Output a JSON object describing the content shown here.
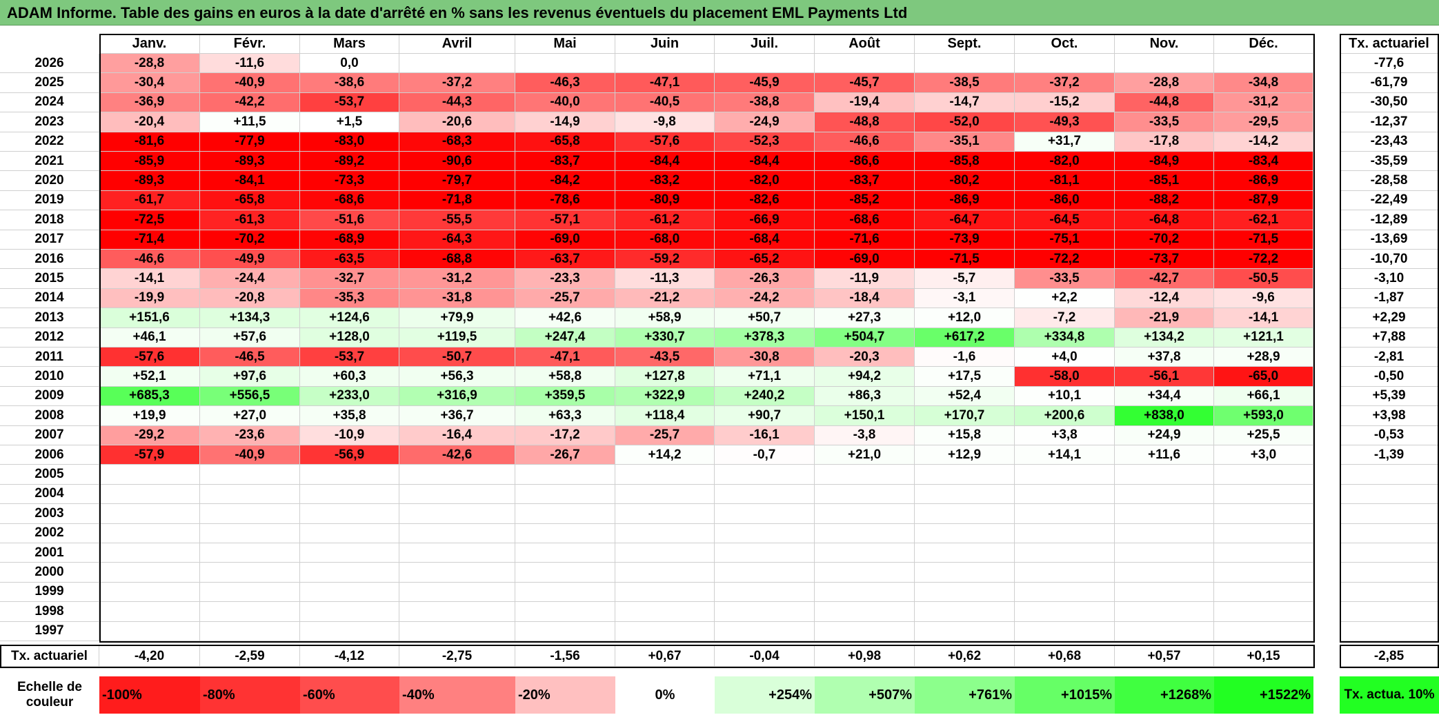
{
  "title": "ADAM Informe. Table des gains en euros à la date d'arrêté en % sans les revenus éventuels du placement EML Payments Ltd",
  "months": [
    "Janv.",
    "Févr.",
    "Mars",
    "Avril",
    "Mai",
    "Juin",
    "Juil.",
    "Août",
    "Sept.",
    "Oct.",
    "Nov.",
    "Déc."
  ],
  "actuarial_header": "Tx. actuariel",
  "rows": [
    {
      "year": "2026",
      "values": [
        "-28,8",
        "-11,6",
        "0,0",
        "",
        "",
        "",
        "",
        "",
        "",
        "",
        "",
        ""
      ],
      "actuarial": "-77,6"
    },
    {
      "year": "2025",
      "values": [
        "-30,4",
        "-40,9",
        "-38,6",
        "-37,2",
        "-46,3",
        "-47,1",
        "-45,9",
        "-45,7",
        "-38,5",
        "-37,2",
        "-28,8",
        "-34,8"
      ],
      "actuarial": "-61,79"
    },
    {
      "year": "2024",
      "values": [
        "-36,9",
        "-42,2",
        "-53,7",
        "-44,3",
        "-40,0",
        "-40,5",
        "-38,8",
        "-19,4",
        "-14,7",
        "-15,2",
        "-44,8",
        "-31,2"
      ],
      "actuarial": "-30,50"
    },
    {
      "year": "2023",
      "values": [
        "-20,4",
        "+11,5",
        "+1,5",
        "-20,6",
        "-14,9",
        "-9,8",
        "-24,9",
        "-48,8",
        "-52,0",
        "-49,3",
        "-33,5",
        "-29,5"
      ],
      "actuarial": "-12,37"
    },
    {
      "year": "2022",
      "values": [
        "-81,6",
        "-77,9",
        "-83,0",
        "-68,3",
        "-65,8",
        "-57,6",
        "-52,3",
        "-46,6",
        "-35,1",
        "+31,7",
        "-17,8",
        "-14,2"
      ],
      "actuarial": "-23,43"
    },
    {
      "year": "2021",
      "values": [
        "-85,9",
        "-89,3",
        "-89,2",
        "-90,6",
        "-83,7",
        "-84,4",
        "-84,4",
        "-86,6",
        "-85,8",
        "-82,0",
        "-84,9",
        "-83,4"
      ],
      "actuarial": "-35,59"
    },
    {
      "year": "2020",
      "values": [
        "-89,3",
        "-84,1",
        "-73,3",
        "-79,7",
        "-84,2",
        "-83,2",
        "-82,0",
        "-83,7",
        "-80,2",
        "-81,1",
        "-85,1",
        "-86,9"
      ],
      "actuarial": "-28,58"
    },
    {
      "year": "2019",
      "values": [
        "-61,7",
        "-65,8",
        "-68,6",
        "-71,8",
        "-78,6",
        "-80,9",
        "-82,6",
        "-85,2",
        "-86,9",
        "-86,0",
        "-88,2",
        "-87,9"
      ],
      "actuarial": "-22,49"
    },
    {
      "year": "2018",
      "values": [
        "-72,5",
        "-61,3",
        "-51,6",
        "-55,5",
        "-57,1",
        "-61,2",
        "-66,9",
        "-68,6",
        "-64,7",
        "-64,5",
        "-64,8",
        "-62,1"
      ],
      "actuarial": "-12,89"
    },
    {
      "year": "2017",
      "values": [
        "-71,4",
        "-70,2",
        "-68,9",
        "-64,3",
        "-69,0",
        "-68,0",
        "-68,4",
        "-71,6",
        "-73,9",
        "-75,1",
        "-70,2",
        "-71,5"
      ],
      "actuarial": "-13,69"
    },
    {
      "year": "2016",
      "values": [
        "-46,6",
        "-49,9",
        "-63,5",
        "-68,8",
        "-63,7",
        "-59,2",
        "-65,2",
        "-69,0",
        "-71,5",
        "-72,2",
        "-73,7",
        "-72,2"
      ],
      "actuarial": "-10,70"
    },
    {
      "year": "2015",
      "values": [
        "-14,1",
        "-24,4",
        "-32,7",
        "-31,2",
        "-23,3",
        "-11,3",
        "-26,3",
        "-11,9",
        "-5,7",
        "-33,5",
        "-42,7",
        "-50,5"
      ],
      "actuarial": "-3,10"
    },
    {
      "year": "2014",
      "values": [
        "-19,9",
        "-20,8",
        "-35,3",
        "-31,8",
        "-25,7",
        "-21,2",
        "-24,2",
        "-18,4",
        "-3,1",
        "+2,2",
        "-12,4",
        "-9,6"
      ],
      "actuarial": "-1,87"
    },
    {
      "year": "2013",
      "values": [
        "+151,6",
        "+134,3",
        "+124,6",
        "+79,9",
        "+42,6",
        "+58,9",
        "+50,7",
        "+27,3",
        "+12,0",
        "-7,2",
        "-21,9",
        "-14,1"
      ],
      "actuarial": "+2,29"
    },
    {
      "year": "2012",
      "values": [
        "+46,1",
        "+57,6",
        "+128,0",
        "+119,5",
        "+247,4",
        "+330,7",
        "+378,3",
        "+504,7",
        "+617,2",
        "+334,8",
        "+134,2",
        "+121,1"
      ],
      "actuarial": "+7,88"
    },
    {
      "year": "2011",
      "values": [
        "-57,6",
        "-46,5",
        "-53,7",
        "-50,7",
        "-47,1",
        "-43,5",
        "-30,8",
        "-20,3",
        "-1,6",
        "+4,0",
        "+37,8",
        "+28,9"
      ],
      "actuarial": "-2,81"
    },
    {
      "year": "2010",
      "values": [
        "+52,1",
        "+97,6",
        "+60,3",
        "+56,3",
        "+58,8",
        "+127,8",
        "+71,1",
        "+94,2",
        "+17,5",
        "-58,0",
        "-56,1",
        "-65,0"
      ],
      "actuarial": "-0,50"
    },
    {
      "year": "2009",
      "values": [
        "+685,3",
        "+556,5",
        "+233,0",
        "+316,9",
        "+359,5",
        "+322,9",
        "+240,2",
        "+86,3",
        "+52,4",
        "+10,1",
        "+34,4",
        "+66,1"
      ],
      "actuarial": "+5,39"
    },
    {
      "year": "2008",
      "values": [
        "+19,9",
        "+27,0",
        "+35,8",
        "+36,7",
        "+63,3",
        "+118,4",
        "+90,7",
        "+150,1",
        "+170,7",
        "+200,6",
        "+838,0",
        "+593,0"
      ],
      "actuarial": "+3,98"
    },
    {
      "year": "2007",
      "values": [
        "-29,2",
        "-23,6",
        "-10,9",
        "-16,4",
        "-17,2",
        "-25,7",
        "-16,1",
        "-3,8",
        "+15,8",
        "+3,8",
        "+24,9",
        "+25,5"
      ],
      "actuarial": "-0,53"
    },
    {
      "year": "2006",
      "values": [
        "-57,9",
        "-40,9",
        "-56,9",
        "-42,6",
        "-26,7",
        "+14,2",
        "-0,7",
        "+21,0",
        "+12,9",
        "+14,1",
        "+11,6",
        "+3,0"
      ],
      "actuarial": "-1,39"
    },
    {
      "year": "2005",
      "values": [
        "",
        "",
        "",
        "",
        "",
        "",
        "",
        "",
        "",
        "",
        "",
        ""
      ],
      "actuarial": ""
    },
    {
      "year": "2004",
      "values": [
        "",
        "",
        "",
        "",
        "",
        "",
        "",
        "",
        "",
        "",
        "",
        ""
      ],
      "actuarial": ""
    },
    {
      "year": "2003",
      "values": [
        "",
        "",
        "",
        "",
        "",
        "",
        "",
        "",
        "",
        "",
        "",
        ""
      ],
      "actuarial": ""
    },
    {
      "year": "2002",
      "values": [
        "",
        "",
        "",
        "",
        "",
        "",
        "",
        "",
        "",
        "",
        "",
        ""
      ],
      "actuarial": ""
    },
    {
      "year": "2001",
      "values": [
        "",
        "",
        "",
        "",
        "",
        "",
        "",
        "",
        "",
        "",
        "",
        ""
      ],
      "actuarial": ""
    },
    {
      "year": "2000",
      "values": [
        "",
        "",
        "",
        "",
        "",
        "",
        "",
        "",
        "",
        "",
        "",
        ""
      ],
      "actuarial": ""
    },
    {
      "year": "1999",
      "values": [
        "",
        "",
        "",
        "",
        "",
        "",
        "",
        "",
        "",
        "",
        "",
        ""
      ],
      "actuarial": ""
    },
    {
      "year": "1998",
      "values": [
        "",
        "",
        "",
        "",
        "",
        "",
        "",
        "",
        "",
        "",
        "",
        ""
      ],
      "actuarial": ""
    },
    {
      "year": "1997",
      "values": [
        "",
        "",
        "",
        "",
        "",
        "",
        "",
        "",
        "",
        "",
        "",
        ""
      ],
      "actuarial": ""
    }
  ],
  "monthly_actuarial": {
    "label": "Tx. actuariel",
    "values": [
      "-4,20",
      "-2,59",
      "-4,12",
      "-2,75",
      "-1,56",
      "+0,67",
      "-0,04",
      "+0,98",
      "+0,62",
      "+0,68",
      "+0,57",
      "+0,15"
    ],
    "total": "-2,85"
  },
  "color_scale": {
    "label": "Echelle de couleur",
    "steps": [
      "-100%",
      "-80%",
      "-60%",
      "-40%",
      "-20%",
      "0%",
      "+254%",
      "+507%",
      "+761%",
      "+1015%",
      "+1268%",
      "+1522%"
    ],
    "colors": [
      "#ff1c1c",
      "#ff3333",
      "#ff4d4d",
      "#ff8080",
      "#ffc0c0",
      "#ffffff",
      "#d9ffd9",
      "#b0ffb0",
      "#8cff8c",
      "#66ff66",
      "#40ff40",
      "#22ff22"
    ],
    "actuarial_label": "Tx. actua. 10%",
    "actuarial_color": "#22ff22"
  },
  "palette": {
    "negative_max": "#ff0000",
    "positive_max": "#22ff22",
    "neutral": "#ffffff",
    "title_bar": "#7ec87e"
  }
}
